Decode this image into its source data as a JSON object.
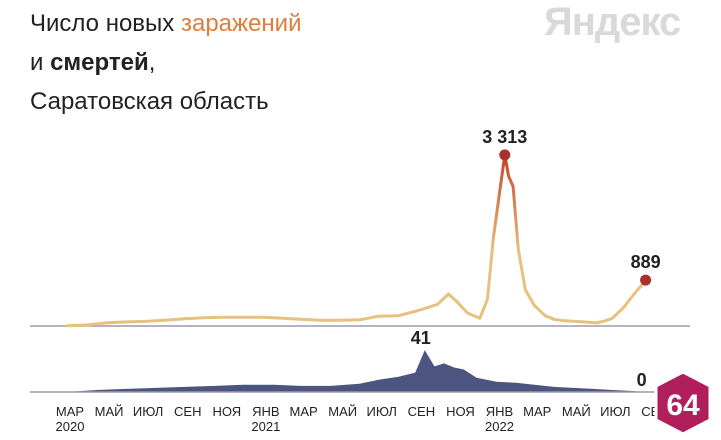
{
  "header": {
    "line1_prefix": "Число новых ",
    "line1_accent": "заражений",
    "line2_prefix": "и ",
    "line2_bold": "смертей",
    "line2_suffix": ",",
    "line3": "Саратовская область"
  },
  "brand_logo": "Яндекс",
  "badge": "64",
  "colors": {
    "infections_low": "#e8c07f",
    "infections_high": "#c74a2b",
    "peak_dot": "#a8322a",
    "deaths": "#4c5580",
    "axis": "#9a9ab0",
    "text": "#222222"
  },
  "chart_data": [
    {
      "type": "line",
      "series": [
        {
          "name": "заражений",
          "x": [
            "2020-03-15",
            "2020-04-15",
            "2020-05-15",
            "2020-06-15",
            "2020-07-15",
            "2020-08-15",
            "2020-09-15",
            "2020-10-15",
            "2020-11-15",
            "2020-12-15",
            "2021-01-15",
            "2021-02-15",
            "2021-03-15",
            "2021-04-15",
            "2021-05-15",
            "2021-06-15",
            "2021-07-15",
            "2021-08-15",
            "2021-09-15",
            "2021-10-15",
            "2021-11-01",
            "2021-11-15",
            "2021-12-01",
            "2021-12-20",
            "2022-01-01",
            "2022-01-10",
            "2022-01-20",
            "2022-01-28",
            "2022-02-03",
            "2022-02-10",
            "2022-02-18",
            "2022-03-01",
            "2022-03-15",
            "2022-04-01",
            "2022-04-15",
            "2022-05-01",
            "2022-06-01",
            "2022-06-20",
            "2022-07-01",
            "2022-07-15",
            "2022-08-01",
            "2022-08-20",
            "2022-09-01",
            "2022-09-05"
          ],
          "values": [
            5,
            20,
            60,
            80,
            90,
            110,
            140,
            160,
            170,
            170,
            170,
            150,
            130,
            110,
            110,
            120,
            190,
            200,
            300,
            420,
            620,
            460,
            250,
            150,
            520,
            1700,
            2600,
            3313,
            2900,
            2700,
            1500,
            700,
            400,
            200,
            130,
            100,
            80,
            60,
            90,
            150,
            350,
            650,
            820,
            889
          ]
        }
      ],
      "point_labels": [
        {
          "label": "3 313",
          "x": "2022-01-28",
          "value": 3313
        },
        {
          "label": "889",
          "x": "2022-09-05",
          "value": 889
        }
      ],
      "ylim": [
        0,
        3600
      ],
      "xlim": [
        "2020-03-01",
        "2022-09-15"
      ]
    },
    {
      "type": "area",
      "series": [
        {
          "name": "смертей",
          "x": [
            "2020-03-15",
            "2020-05-01",
            "2020-06-15",
            "2020-08-01",
            "2020-09-15",
            "2020-11-01",
            "2020-12-15",
            "2021-02-01",
            "2021-03-15",
            "2021-05-01",
            "2021-06-15",
            "2021-07-15",
            "2021-08-15",
            "2021-09-10",
            "2021-09-25",
            "2021-10-10",
            "2021-10-25",
            "2021-11-10",
            "2021-11-25",
            "2021-12-15",
            "2022-01-15",
            "2022-02-15",
            "2022-03-15",
            "2022-04-15",
            "2022-05-15",
            "2022-06-15",
            "2022-07-15",
            "2022-08-15",
            "2022-09-05"
          ],
          "values": [
            0,
            2,
            3,
            4,
            5,
            6,
            7,
            7,
            6,
            6,
            8,
            12,
            15,
            19,
            41,
            25,
            28,
            24,
            22,
            14,
            10,
            9,
            7,
            5,
            4,
            3,
            2,
            1,
            0
          ]
        }
      ],
      "point_labels": [
        {
          "label": "41",
          "x": "2021-09-25",
          "value": 41
        },
        {
          "label": "0",
          "x": "2022-09-05",
          "value": 0
        }
      ],
      "ylim": [
        0,
        45
      ]
    }
  ],
  "x_axis": {
    "month_ticks": [
      {
        "date": "2020-03-01",
        "label": "МАР",
        "year": "2020"
      },
      {
        "date": "2020-05-01",
        "label": "МАЙ"
      },
      {
        "date": "2020-07-01",
        "label": "ИЮЛ"
      },
      {
        "date": "2020-09-01",
        "label": "СЕН"
      },
      {
        "date": "2020-11-01",
        "label": "НОЯ"
      },
      {
        "date": "2021-01-01",
        "label": "ЯНВ",
        "year": "2021"
      },
      {
        "date": "2021-03-01",
        "label": "МАР"
      },
      {
        "date": "2021-05-01",
        "label": "МАЙ"
      },
      {
        "date": "2021-07-01",
        "label": "ИЮЛ"
      },
      {
        "date": "2021-09-01",
        "label": "СЕН"
      },
      {
        "date": "2021-11-01",
        "label": "НОЯ"
      },
      {
        "date": "2022-01-01",
        "label": "ЯНВ",
        "year": "2022"
      },
      {
        "date": "2022-03-01",
        "label": "МАР"
      },
      {
        "date": "2022-05-01",
        "label": "МАЙ"
      },
      {
        "date": "2022-07-01",
        "label": "ИЮЛ"
      },
      {
        "date": "2022-09-01",
        "label": "СЕН"
      }
    ]
  }
}
